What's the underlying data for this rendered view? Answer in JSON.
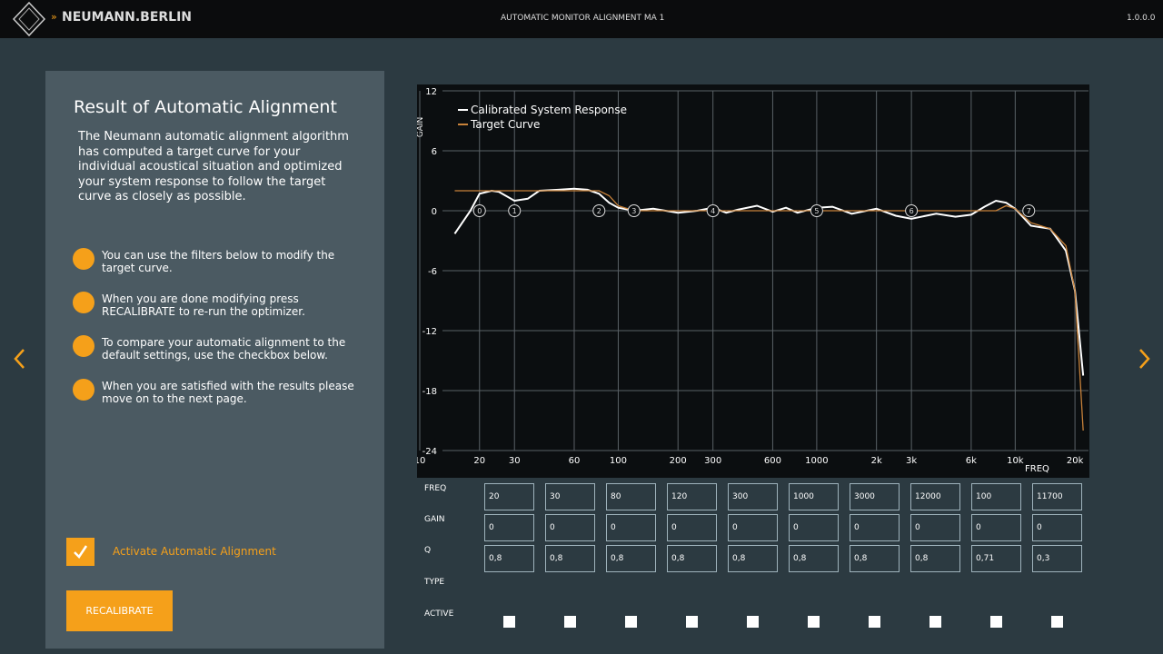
{
  "header": {
    "brand": "NEUMANN.BERLIN",
    "title": "AUTOMATIC MONITOR ALIGNMENT MA 1",
    "version": "1.0.0.0"
  },
  "panel": {
    "title": "Result of Automatic Alignment",
    "description": "The Neumann automatic alignment algorithm has computed a target curve for your individual acoustical situation and optimized your system response to follow the target curve as closely as possible.",
    "steps": [
      "You can use the filters below to modify the target curve.",
      "When you are done modifying press RECALIBRATE to re-run the optimizer.",
      "To compare your automatic alignment to the default settings, use the checkbox below.",
      "When you are satisfied with the results please move on to the next page."
    ],
    "checkbox_label": "Activate Automatic Alignment",
    "button": "RECALIBRATE"
  },
  "chart_data": {
    "type": "line",
    "x_label": "FREQ",
    "y_label": "GAIN",
    "log_x": true,
    "grid": true,
    "xlim": [
      10,
      23400
    ],
    "ylim": [
      -24,
      12
    ],
    "xticks": [
      10,
      20,
      30,
      60,
      100,
      200,
      300,
      600,
      1000,
      {
        "value": 2000,
        "label": "2k"
      },
      {
        "value": 3000,
        "label": "3k"
      },
      {
        "value": 6000,
        "label": "6k"
      },
      {
        "value": 10000,
        "label": "10k"
      },
      {
        "value": 20000,
        "label": "20k"
      }
    ],
    "yticks": [
      -24,
      -18,
      -12,
      -6,
      0,
      6,
      12
    ],
    "legend": "top-left",
    "x": [
      15,
      18,
      20,
      23,
      25,
      30,
      35,
      40,
      50,
      60,
      70,
      80,
      90,
      100,
      120,
      150,
      200,
      250,
      300,
      350,
      400,
      500,
      600,
      700,
      800,
      1000,
      1200,
      1500,
      2000,
      2500,
      3000,
      4000,
      5000,
      6000,
      7000,
      8000,
      9000,
      10000,
      12000,
      15000,
      18000,
      20000,
      22000
    ],
    "series": [
      {
        "name": "Calibrated System Response",
        "color": "#ffffff",
        "values": [
          -2.3,
          0,
          1.7,
          2,
          1.9,
          1,
          1.2,
          2,
          2.1,
          2.2,
          2.1,
          1.7,
          0.8,
          0.3,
          0,
          0.2,
          -0.2,
          0,
          0.3,
          -0.2,
          0.1,
          0.5,
          -0.1,
          0.3,
          -0.2,
          0.3,
          0.4,
          -0.3,
          0.2,
          -0.5,
          -0.8,
          -0.3,
          -0.6,
          -0.4,
          0.4,
          1,
          0.8,
          0.2,
          -1.5,
          -1.8,
          -4,
          -8,
          -16.5
        ]
      },
      {
        "name": "Target Curve",
        "color": "#c8823a",
        "values": [
          2,
          2,
          2,
          2,
          2,
          2,
          2,
          2,
          2,
          2,
          2,
          2,
          1.5,
          0.5,
          0,
          0,
          0,
          0,
          0,
          0,
          0,
          0,
          0,
          0,
          0,
          0,
          0,
          0,
          0,
          0,
          0,
          0,
          0,
          0,
          0,
          0,
          0.5,
          0.2,
          -1.2,
          -1.8,
          -3.5,
          -8,
          -22
        ]
      }
    ],
    "markers": {
      "labels": [
        0,
        1,
        2,
        3,
        4,
        5,
        6,
        7
      ],
      "x": [
        20,
        30,
        80,
        120,
        300,
        1000,
        3000,
        11700
      ],
      "y": [
        0,
        0,
        0,
        0,
        0,
        0,
        0,
        0
      ]
    }
  },
  "filters": {
    "row_labels": [
      "FREQ",
      "GAIN",
      "Q",
      "TYPE",
      "ACTIVE"
    ],
    "freq": [
      "20",
      "30",
      "80",
      "120",
      "300",
      "1000",
      "3000",
      "12000",
      "100",
      "11700"
    ],
    "gain": [
      "0",
      "0",
      "0",
      "0",
      "0",
      "0",
      "0",
      "0",
      "0",
      "0"
    ],
    "q": [
      "0,8",
      "0,8",
      "0,8",
      "0,8",
      "0,8",
      "0,8",
      "0,8",
      "0,8",
      "0,71",
      "0,3"
    ]
  }
}
